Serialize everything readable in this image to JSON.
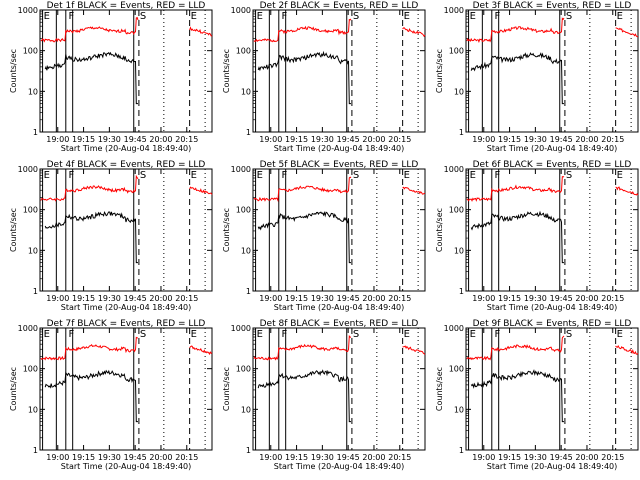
{
  "figure": {
    "panels": [
      {
        "title": "Det 1f BLACK = Events, RED = LLD",
        "seed": 1
      },
      {
        "title": "Det 2f BLACK = Events, RED = LLD",
        "seed": 2
      },
      {
        "title": "Det 3f BLACK = Events, RED = LLD",
        "seed": 3
      },
      {
        "title": "Det 4f BLACK = Events, RED = LLD",
        "seed": 4
      },
      {
        "title": "Det 5f BLACK = Events, RED = LLD",
        "seed": 5
      },
      {
        "title": "Det 6f BLACK = Events, RED = LLD",
        "seed": 6
      },
      {
        "title": "Det 7f BLACK = Events, RED = LLD",
        "seed": 7
      },
      {
        "title": "Det 8f BLACK = Events, RED = LLD",
        "seed": 8
      },
      {
        "title": "Det 9f BLACK = Events, RED = LLD",
        "seed": 9
      }
    ]
  },
  "chart_data": {
    "type": "line",
    "layout": "3x3 grid of identical panels",
    "ylabel": "Counts/sec",
    "xlabel": "Start Time (20-Aug-04 18:49:40)",
    "yscale": "log",
    "ylim": [
      1,
      1000
    ],
    "y_ticks": [
      "1",
      "10",
      "100",
      "1000"
    ],
    "x_ticks": [
      "19:00",
      "19:15",
      "19:30",
      "19:45",
      "20:00",
      "20:15"
    ],
    "x_tick_minutes": [
      10.33,
      25.33,
      40.33,
      55.33,
      70.33,
      85.33
    ],
    "xlim_minutes": [
      0,
      100
    ],
    "series": [
      {
        "name": "Events",
        "color": "#000000"
      },
      {
        "name": "LLD",
        "color": "#ff0000"
      }
    ],
    "typical_levels": {
      "Events": {
        "t0_15": 40,
        "t15_50": 70,
        "t50_56": 55,
        "after_56": 1
      },
      "LLD": {
        "t0_15": 180,
        "t15_50": 330,
        "t50_56": 280,
        "t87_100": 350
      }
    },
    "annotations": [
      {
        "label": "E",
        "minute": 1.5,
        "style": "solid"
      },
      {
        "label": "F",
        "minute": 16.0,
        "style": "solid"
      },
      {
        "label": "S",
        "minute": 57.5,
        "style": "dashed"
      },
      {
        "label": "E",
        "minute": 87.0,
        "style": "dashed"
      }
    ],
    "vertical_lines": [
      {
        "minute": 1.5,
        "style": "solid"
      },
      {
        "minute": 9.5,
        "style": "solid"
      },
      {
        "minute": 15.0,
        "style": "solid"
      },
      {
        "minute": 19.0,
        "style": "solid"
      },
      {
        "minute": 54.5,
        "style": "solid"
      },
      {
        "minute": 57.5,
        "style": "dashed"
      },
      {
        "minute": 72.0,
        "style": "dotted"
      },
      {
        "minute": 87.0,
        "style": "dashed"
      },
      {
        "minute": 96.0,
        "style": "dotted"
      }
    ],
    "colors": {
      "events": "#000000",
      "lld": "#ff0000",
      "axes": "#000000",
      "background": "#ffffff"
    }
  }
}
